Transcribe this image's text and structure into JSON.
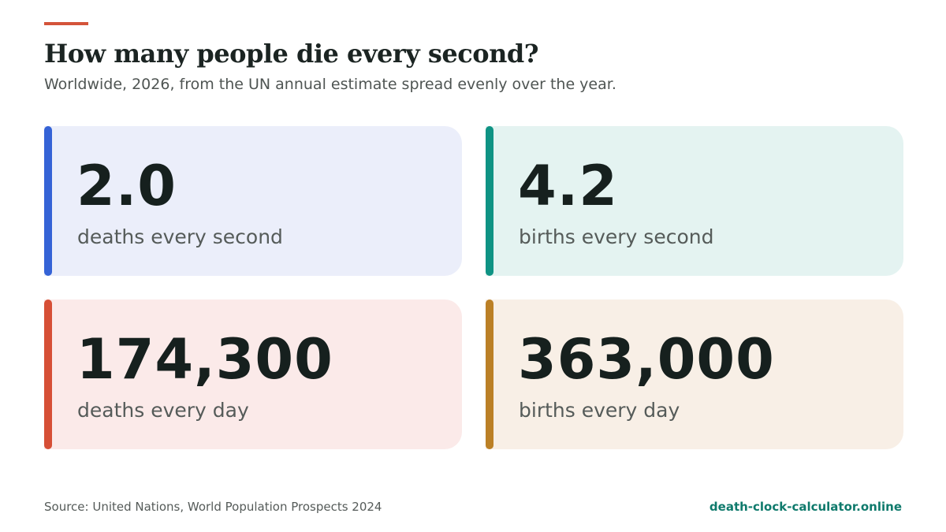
{
  "header": {
    "title": "How many people die every second?",
    "subtitle": "Worldwide, 2026, from the UN annual estimate spread evenly over the year."
  },
  "cards": [
    {
      "value": "2.0",
      "label": "deaths every second",
      "accent_color": "#3563d6",
      "background_color": "#ebeefa"
    },
    {
      "value": "4.2",
      "label": "births every second",
      "accent_color": "#0f9384",
      "background_color": "#e4f3f1"
    },
    {
      "value": "174,300",
      "label": "deaths every day",
      "accent_color": "#d64f36",
      "background_color": "#fbeae9"
    },
    {
      "value": "363,000",
      "label": "births every day",
      "accent_color": "#bb8026",
      "background_color": "#f8efe6"
    }
  ],
  "footer": {
    "source": "Source: United Nations, World Population Prospects 2024",
    "site": "death-clock-calculator.online"
  },
  "colors": {
    "title_rule": "#d4543a",
    "site_link": "#0f7a6c"
  }
}
